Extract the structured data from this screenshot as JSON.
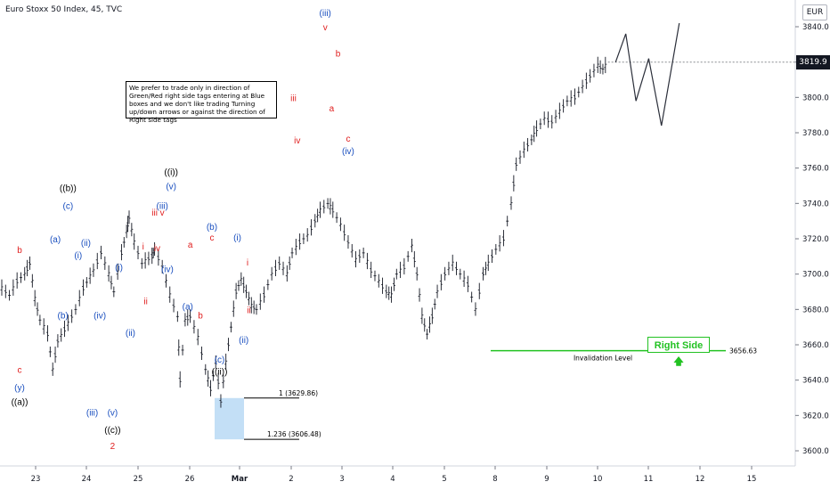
{
  "header": {
    "title": "Euro Stoxx 50 Index, 45, TVC"
  },
  "note": {
    "text": "We prefer to trade only in direction of Green/Red right side tags entering at Blue boxes and we don't like trading Turning up/down arrows or against the direction of Right side tags"
  },
  "currency": "EUR",
  "last_price": "3819.9",
  "right_side_tag": {
    "label": "Right Side",
    "arrow": "arrow-up-icon",
    "color": "#22c222"
  },
  "chart_data": {
    "type": "line",
    "title": "Euro Stoxx 50 Index, 45, TVC",
    "ylim": [
      3590,
      3850
    ],
    "y_ticks": [
      "3600.0",
      "3620.0",
      "3640.0",
      "3660.0",
      "3680.0",
      "3700.0",
      "3720.0",
      "3740.0",
      "3760.0",
      "3780.0",
      "3800.0",
      "3820.0",
      "3840.0"
    ],
    "x_ticks": [
      "23",
      "24",
      "25",
      "26",
      "Mar",
      "2",
      "3",
      "4",
      "5",
      "8",
      "9",
      "10",
      "11",
      "12",
      "15"
    ],
    "grid": false,
    "series": [
      {
        "values": [
          [
            0,
            3692
          ],
          [
            0.3,
            3688
          ],
          [
            0.6,
            3696
          ],
          [
            0.9,
            3700
          ],
          [
            1.1,
            3706
          ],
          [
            1.3,
            3686
          ],
          [
            1.5,
            3674
          ],
          [
            1.8,
            3666
          ],
          [
            2.0,
            3646
          ],
          [
            2.2,
            3662
          ],
          [
            2.6,
            3672
          ],
          [
            2.9,
            3680
          ],
          [
            3.2,
            3692
          ],
          [
            3.6,
            3702
          ],
          [
            3.9,
            3712
          ],
          [
            4.2,
            3700
          ],
          [
            4.4,
            3690
          ],
          [
            4.7,
            3712
          ],
          [
            4.9,
            3724
          ],
          [
            5.0,
            3732
          ],
          [
            5.2,
            3718
          ],
          [
            5.5,
            3706
          ],
          [
            5.9,
            3710
          ],
          [
            6.0,
            3714
          ],
          [
            6.3,
            3704
          ],
          [
            6.6,
            3688
          ],
          [
            6.9,
            3676
          ],
          [
            7.0,
            3640
          ],
          [
            7.2,
            3674
          ],
          [
            7.4,
            3676
          ],
          [
            7.7,
            3664
          ],
          [
            8.0,
            3646
          ],
          [
            8.2,
            3635
          ],
          [
            8.4,
            3650
          ],
          [
            8.6,
            3628
          ],
          [
            8.8,
            3650
          ],
          [
            9.0,
            3670
          ],
          [
            9.2,
            3690
          ],
          [
            9.4,
            3697
          ],
          [
            9.6,
            3690
          ],
          [
            9.8,
            3682
          ],
          [
            10.0,
            3680
          ],
          [
            10.3,
            3688
          ],
          [
            10.6,
            3700
          ],
          [
            10.9,
            3706
          ],
          [
            11.2,
            3700
          ],
          [
            11.4,
            3712
          ],
          [
            11.7,
            3718
          ],
          [
            12.0,
            3722
          ],
          [
            12.3,
            3730
          ],
          [
            12.5,
            3736
          ],
          [
            12.8,
            3740
          ],
          [
            13.0,
            3736
          ],
          [
            13.3,
            3728
          ],
          [
            13.6,
            3718
          ],
          [
            13.9,
            3708
          ],
          [
            14.2,
            3712
          ],
          [
            14.5,
            3702
          ],
          [
            14.8,
            3696
          ],
          [
            15.1,
            3690
          ],
          [
            15.3,
            3688
          ],
          [
            15.5,
            3700
          ],
          [
            15.8,
            3704
          ],
          [
            16.1,
            3716
          ],
          [
            16.3,
            3700
          ],
          [
            16.5,
            3676
          ],
          [
            16.7,
            3666
          ],
          [
            16.9,
            3676
          ],
          [
            17.1,
            3690
          ],
          [
            17.4,
            3700
          ],
          [
            17.7,
            3706
          ],
          [
            18.0,
            3700
          ],
          [
            18.3,
            3694
          ],
          [
            18.6,
            3680
          ],
          [
            18.9,
            3700
          ],
          [
            19.1,
            3706
          ],
          [
            19.4,
            3714
          ],
          [
            19.7,
            3720
          ],
          [
            20.0,
            3740
          ],
          [
            20.2,
            3762
          ],
          [
            20.5,
            3770
          ],
          [
            20.8,
            3776
          ],
          [
            21.0,
            3782
          ],
          [
            21.3,
            3788
          ],
          [
            21.6,
            3786
          ],
          [
            21.9,
            3792
          ],
          [
            22.2,
            3798
          ],
          [
            22.5,
            3800
          ],
          [
            22.8,
            3806
          ],
          [
            23.1,
            3812
          ],
          [
            23.4,
            3818
          ],
          [
            23.6,
            3816
          ],
          [
            23.8,
            3819.9
          ]
        ]
      },
      {
        "name": "projection",
        "values": [
          [
            24.1,
            3820
          ],
          [
            24.5,
            3836
          ],
          [
            24.9,
            3798
          ],
          [
            25.4,
            3822
          ],
          [
            25.9,
            3784
          ],
          [
            26.6,
            3842
          ]
        ]
      }
    ],
    "fib_levels": [
      {
        "label": "1 (3629.86)",
        "value": 3629.86
      },
      {
        "label": "1.236 (3606.48)",
        "value": 3606.48
      }
    ],
    "invalidation": {
      "label": "Invalidation Level",
      "value_label": "3656.63",
      "value": 3656.63
    },
    "wave_labels": [
      {
        "text": "b",
        "x": 0.7,
        "y": 3712,
        "color": "#e02020"
      },
      {
        "text": "c",
        "x": 0.7,
        "y": 3644,
        "color": "#e02020"
      },
      {
        "text": "(y)",
        "x": 0.7,
        "y": 3634,
        "color": "#1a4fbf"
      },
      {
        "text": "((a))",
        "x": 0.7,
        "y": 3626,
        "color": "#000000"
      },
      {
        "text": "(a)",
        "x": 2.1,
        "y": 3718,
        "color": "#1a4fbf"
      },
      {
        "text": "(b)",
        "x": 2.4,
        "y": 3675,
        "color": "#1a4fbf"
      },
      {
        "text": "(c)",
        "x": 2.6,
        "y": 3737,
        "color": "#1a4fbf"
      },
      {
        "text": "((b))",
        "x": 2.6,
        "y": 3747,
        "color": "#000000"
      },
      {
        "text": "(i)",
        "x": 3.0,
        "y": 3709,
        "color": "#1a4fbf"
      },
      {
        "text": "(ii)",
        "x": 3.3,
        "y": 3716,
        "color": "#1a4fbf"
      },
      {
        "text": "(iii)",
        "x": 3.55,
        "y": 3620,
        "color": "#1a4fbf"
      },
      {
        "text": "(iv)",
        "x": 3.85,
        "y": 3675,
        "color": "#1a4fbf"
      },
      {
        "text": "(v)",
        "x": 4.35,
        "y": 3620,
        "color": "#1a4fbf"
      },
      {
        "text": "((c))",
        "x": 4.35,
        "y": 3610,
        "color": "#000000"
      },
      {
        "text": "2",
        "x": 4.35,
        "y": 3601,
        "color": "#e02020"
      },
      {
        "text": "(i)",
        "x": 4.6,
        "y": 3702,
        "color": "#1a4fbf"
      },
      {
        "text": "(ii)",
        "x": 5.05,
        "y": 3665,
        "color": "#1a4fbf"
      },
      {
        "text": "i",
        "x": 5.55,
        "y": 3714,
        "color": "#e02020"
      },
      {
        "text": "ii",
        "x": 5.65,
        "y": 3683,
        "color": "#e02020"
      },
      {
        "text": "iii",
        "x": 6.0,
        "y": 3733,
        "color": "#e02020"
      },
      {
        "text": "iv",
        "x": 6.1,
        "y": 3713,
        "color": "#e02020"
      },
      {
        "text": "v",
        "x": 6.3,
        "y": 3733,
        "color": "#e02020"
      },
      {
        "text": "(iii)",
        "x": 6.3,
        "y": 3737,
        "color": "#1a4fbf"
      },
      {
        "text": "(iv)",
        "x": 6.5,
        "y": 3701,
        "color": "#1a4fbf"
      },
      {
        "text": "(v)",
        "x": 6.65,
        "y": 3748,
        "color": "#1a4fbf"
      },
      {
        "text": "((i))",
        "x": 6.65,
        "y": 3756,
        "color": "#000000"
      },
      {
        "text": "a",
        "x": 7.4,
        "y": 3715,
        "color": "#e02020"
      },
      {
        "text": "(a)",
        "x": 7.3,
        "y": 3680,
        "color": "#1a4fbf"
      },
      {
        "text": "b",
        "x": 7.8,
        "y": 3675,
        "color": "#e02020"
      },
      {
        "text": "c",
        "x": 8.25,
        "y": 3719,
        "color": "#e02020"
      },
      {
        "text": "(b)",
        "x": 8.25,
        "y": 3725,
        "color": "#1a4fbf"
      },
      {
        "text": "(c)",
        "x": 8.55,
        "y": 3650,
        "color": "#1a4fbf"
      },
      {
        "text": "((ii))",
        "x": 8.55,
        "y": 3643,
        "color": "#000000"
      },
      {
        "text": "(i)",
        "x": 9.25,
        "y": 3719,
        "color": "#1a4fbf"
      },
      {
        "text": "i",
        "x": 9.65,
        "y": 3705,
        "color": "#e02020"
      },
      {
        "text": "ii",
        "x": 9.7,
        "y": 3678,
        "color": "#e02020"
      },
      {
        "text": "(ii)",
        "x": 9.5,
        "y": 3661,
        "color": "#1a4fbf"
      },
      {
        "text": "iii",
        "x": 11.45,
        "y": 3798,
        "color": "#e02020"
      },
      {
        "text": "iv",
        "x": 11.6,
        "y": 3774,
        "color": "#e02020"
      },
      {
        "text": "(iii)",
        "x": 12.7,
        "y": 3846,
        "color": "#1a4fbf"
      },
      {
        "text": "v",
        "x": 12.7,
        "y": 3838,
        "color": "#e02020"
      },
      {
        "text": "a",
        "x": 12.95,
        "y": 3792,
        "color": "#e02020"
      },
      {
        "text": "b",
        "x": 13.2,
        "y": 3823,
        "color": "#e02020"
      },
      {
        "text": "c",
        "x": 13.6,
        "y": 3775,
        "color": "#e02020"
      },
      {
        "text": "(iv)",
        "x": 13.6,
        "y": 3768,
        "color": "#1a4fbf"
      }
    ]
  }
}
